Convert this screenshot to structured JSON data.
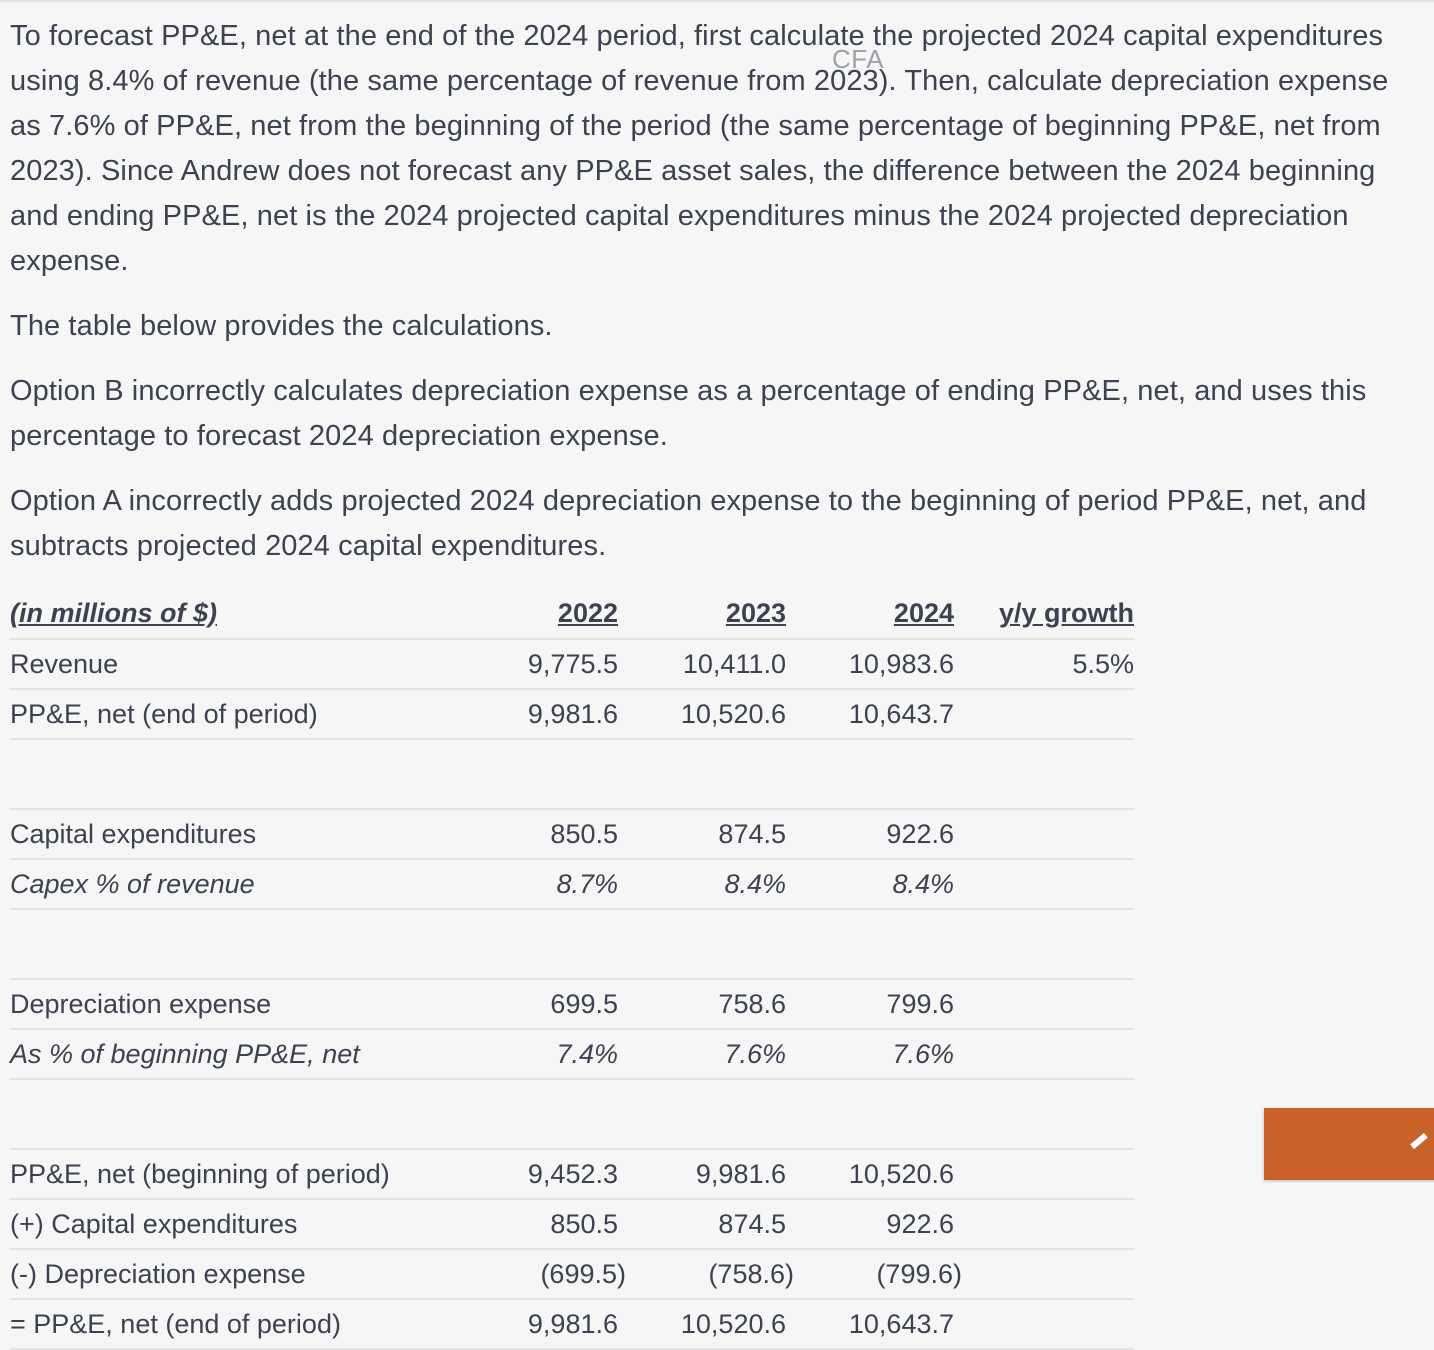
{
  "watermark": "CFA",
  "paragraphs": [
    "To forecast PP&E, net at the end of the 2024 period, first calculate the projected 2024 capital expenditures using 8.4% of revenue (the same percentage of revenue from 2023).  Then, calculate depreciation expense as 7.6% of PP&E, net from the beginning of the period (the same percentage of beginning PP&E, net from 2023).  Since Andrew does not forecast any PP&E asset sales, the difference between the 2024 beginning and ending PP&E, net is the 2024 projected capital expenditures minus the 2024 projected depreciation expense.",
    "The table below provides the calculations.",
    "Option B incorrectly calculates depreciation expense as a percentage of ending PP&E, net, and uses this percentage to forecast 2024 depreciation expense.",
    "Option A incorrectly adds projected 2024 depreciation expense to the beginning of period PP&E, net, and subtracts projected 2024 capital expenditures."
  ],
  "table": {
    "header": {
      "label": "(in millions of $)",
      "y2022": "2022",
      "y2023": "2023",
      "y2024": "2024",
      "growth": "y/y growth"
    },
    "rows": [
      {
        "label": "Revenue",
        "v2022": "9,775.5",
        "v2023": "10,411.0",
        "v2024": "10,983.6",
        "growth": "5.5%"
      },
      {
        "label": "PP&E, net (end of period)",
        "v2022": "9,981.6",
        "v2023": "10,520.6",
        "v2024": "10,643.7",
        "growth": ""
      },
      {
        "label": "Capital expenditures",
        "v2022": "850.5",
        "v2023": "874.5",
        "v2024": "922.6",
        "growth": ""
      },
      {
        "label": "Capex % of revenue",
        "v2022": "8.7%",
        "v2023": "8.4%",
        "v2024": "8.4%",
        "growth": ""
      },
      {
        "label": "Depreciation expense",
        "v2022": "699.5",
        "v2023": "758.6",
        "v2024": "799.6",
        "growth": ""
      },
      {
        "label": "As % of beginning PP&E, net",
        "v2022": "7.4%",
        "v2023": "7.6%",
        "v2024": "7.6%",
        "growth": ""
      },
      {
        "label": "PP&E, net (beginning of period)",
        "v2022": "9,452.3",
        "v2023": "9,981.6",
        "v2024": "10,520.6",
        "growth": ""
      },
      {
        "label": "(+) Capital expenditures",
        "v2022": "850.5",
        "v2023": "874.5",
        "v2024": "922.6",
        "growth": ""
      },
      {
        "label": "(-) Depreciation expense",
        "v2022": "(699.5)",
        "v2023": "(758.6)",
        "v2024": "(799.6)",
        "growth": ""
      },
      {
        "label": "= PP&E, net (end of period)",
        "v2022": "9,981.6",
        "v2023": "10,520.6",
        "v2024": "10,643.7",
        "growth": ""
      }
    ]
  },
  "floating_button": {
    "icon": "pencil-icon",
    "color": "#c9622a"
  }
}
